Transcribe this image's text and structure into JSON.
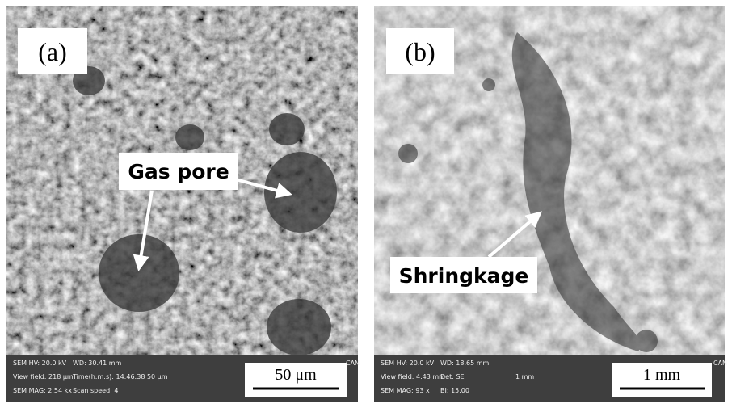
{
  "panels": [
    {
      "label": "(a)",
      "annotation": "Gas pore",
      "scale_bar": "50 μm",
      "info": [
        [
          "SEM HV: 20.0 kV",
          "WD: 30.41 mm",
          "CAN"
        ],
        [
          "View field: 218 μm",
          "Time(h:m:s): 14:46:38 50 μm"
        ],
        [
          "SEM MAG: 2.54 kx",
          "Scan speed: 4"
        ]
      ]
    },
    {
      "label": "(b)",
      "annotation": "Shringkage",
      "scale_bar": "1 mm",
      "info": [
        [
          "SEM HV: 20.0 kV",
          "WD: 18.65 mm",
          "CAN"
        ],
        [
          "View field: 4.43 mm",
          "Det: SE",
          "1 mm"
        ],
        [
          "SEM MAG: 93 x",
          "BI: 15.00"
        ]
      ]
    }
  ]
}
